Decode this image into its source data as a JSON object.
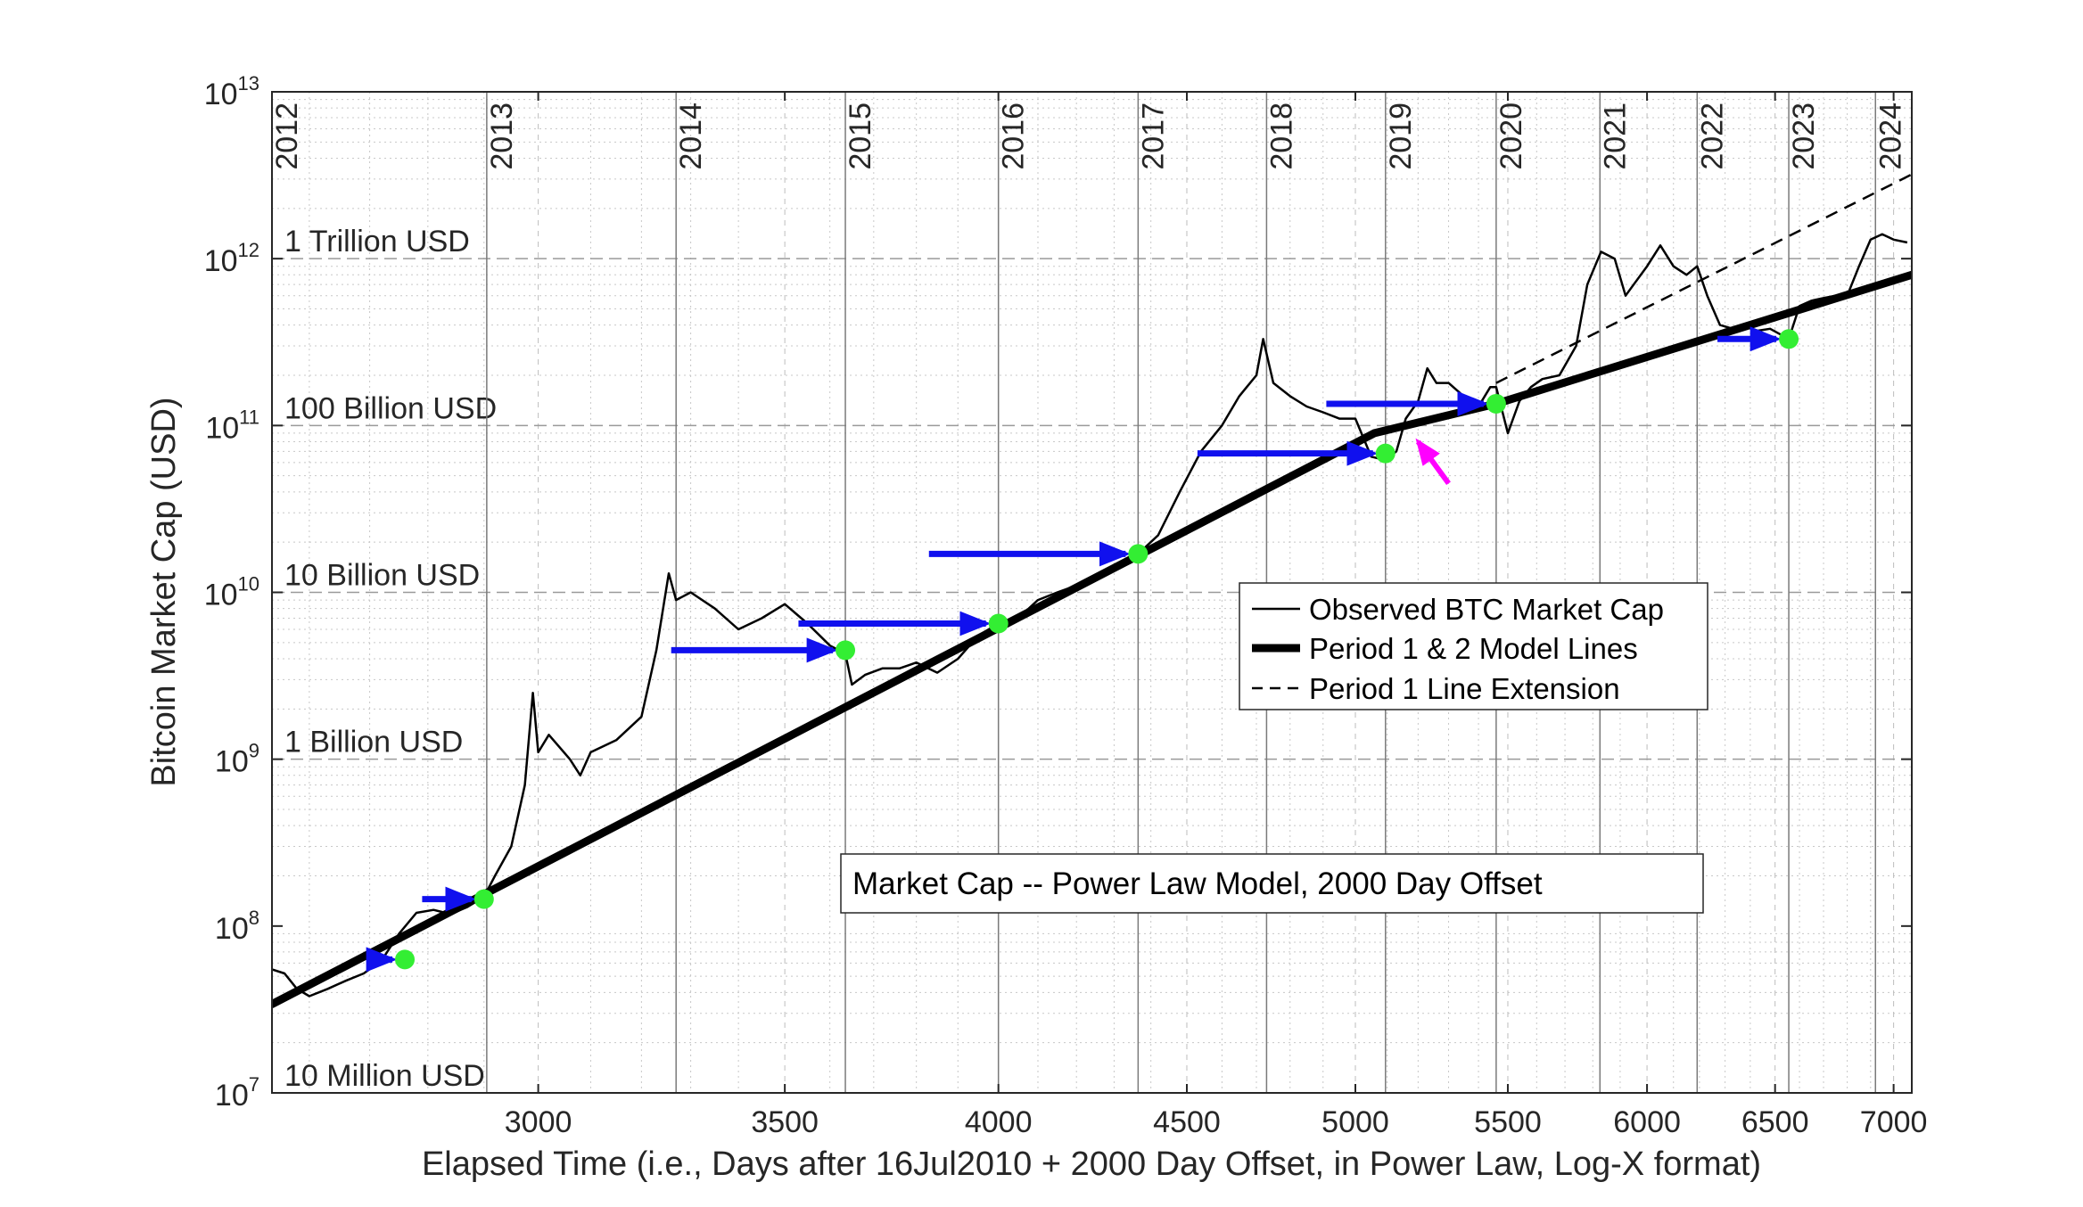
{
  "chart_data": {
    "type": "line",
    "title": "Market Cap -- Power Law Model, 2000 Day Offset",
    "xlabel": "Elapsed Time (i.e., Days after 16Jul2010 + 2000 Day Offset, in Power Law, Log-X format)",
    "ylabel": "Bitcoin Market Cap (USD)",
    "x_scale": "log",
    "y_scale": "log",
    "xlim": [
      2540,
      7080
    ],
    "ylim": [
      10000000,
      10000000000000
    ],
    "x_ticks": [
      3000,
      3500,
      4000,
      4500,
      5000,
      5500,
      6000,
      6500,
      7000
    ],
    "y_ticks": [
      {
        "value": 10000000,
        "base": "10",
        "exp": "7"
      },
      {
        "value": 100000000,
        "base": "10",
        "exp": "8"
      },
      {
        "value": 1000000000,
        "base": "10",
        "exp": "9"
      },
      {
        "value": 10000000000,
        "base": "10",
        "exp": "10"
      },
      {
        "value": 100000000000,
        "base": "10",
        "exp": "11"
      },
      {
        "value": 1000000000000,
        "base": "10",
        "exp": "12"
      },
      {
        "value": 10000000000000,
        "base": "10",
        "exp": "13"
      }
    ],
    "grid": true,
    "legend_position": "center-right",
    "legend": [
      {
        "label": "Observed BTC Market Cap",
        "style": "thin-solid"
      },
      {
        "label": "Period 1 & 2 Model Lines",
        "style": "thick-solid"
      },
      {
        "label": "Period 1 Line Extension",
        "style": "dashed"
      }
    ],
    "reference_lines": [
      {
        "label": "10 Million USD",
        "value": 10000000
      },
      {
        "label": "1 Billion USD",
        "value": 1000000000
      },
      {
        "label": "10 Billion USD",
        "value": 10000000000
      },
      {
        "label": "100 Billion USD",
        "value": 100000000000
      },
      {
        "label": "1 Trillion USD",
        "value": 1000000000000
      }
    ],
    "year_markers": [
      {
        "label": "2012",
        "x": 2540
      },
      {
        "label": "2013",
        "x": 2905
      },
      {
        "label": "2014",
        "x": 3270
      },
      {
        "label": "2015",
        "x": 3635
      },
      {
        "label": "2016",
        "x": 4000
      },
      {
        "label": "2017",
        "x": 4365
      },
      {
        "label": "2018",
        "x": 4730
      },
      {
        "label": "2019",
        "x": 5095
      },
      {
        "label": "2020",
        "x": 5460
      },
      {
        "label": "2021",
        "x": 5826
      },
      {
        "label": "2022",
        "x": 6191
      },
      {
        "label": "2023",
        "x": 6556
      },
      {
        "label": "2024",
        "x": 6921
      }
    ],
    "series": [
      {
        "name": "Observed BTC Market Cap",
        "points": [
          [
            2540,
            55000000
          ],
          [
            2560,
            52000000
          ],
          [
            2580,
            42000000
          ],
          [
            2600,
            38000000
          ],
          [
            2630,
            42000000
          ],
          [
            2660,
            47000000
          ],
          [
            2690,
            52000000
          ],
          [
            2720,
            62000000
          ],
          [
            2750,
            90000000
          ],
          [
            2780,
            120000000
          ],
          [
            2810,
            125000000
          ],
          [
            2840,
            118000000
          ],
          [
            2870,
            130000000
          ],
          [
            2900,
            150000000
          ],
          [
            2920,
            200000000
          ],
          [
            2950,
            300000000
          ],
          [
            2975,
            700000000
          ],
          [
            2990,
            2500000000
          ],
          [
            3000,
            1100000000
          ],
          [
            3020,
            1400000000
          ],
          [
            3060,
            1000000000
          ],
          [
            3080,
            800000000
          ],
          [
            3100,
            1100000000
          ],
          [
            3150,
            1300000000
          ],
          [
            3200,
            1800000000
          ],
          [
            3230,
            4500000000
          ],
          [
            3255,
            13000000000
          ],
          [
            3270,
            9000000000
          ],
          [
            3300,
            10000000000
          ],
          [
            3350,
            8000000000
          ],
          [
            3400,
            6000000000
          ],
          [
            3450,
            7000000000
          ],
          [
            3500,
            8500000000
          ],
          [
            3550,
            6500000000
          ],
          [
            3600,
            4800000000
          ],
          [
            3635,
            4300000000
          ],
          [
            3650,
            2800000000
          ],
          [
            3680,
            3200000000
          ],
          [
            3720,
            3500000000
          ],
          [
            3760,
            3500000000
          ],
          [
            3800,
            3800000000
          ],
          [
            3850,
            3300000000
          ],
          [
            3900,
            4000000000
          ],
          [
            3950,
            5500000000
          ],
          [
            4000,
            6500000000
          ],
          [
            4050,
            7000000000
          ],
          [
            4100,
            9000000000
          ],
          [
            4150,
            10000000000
          ],
          [
            4200,
            11000000000
          ],
          [
            4250,
            12000000000
          ],
          [
            4300,
            14000000000
          ],
          [
            4365,
            17000000000
          ],
          [
            4420,
            22000000000
          ],
          [
            4480,
            40000000000
          ],
          [
            4540,
            70000000000
          ],
          [
            4600,
            100000000000
          ],
          [
            4650,
            150000000000
          ],
          [
            4700,
            200000000000
          ],
          [
            4720,
            330000000000
          ],
          [
            4750,
            180000000000
          ],
          [
            4800,
            150000000000
          ],
          [
            4850,
            130000000000
          ],
          [
            4900,
            120000000000
          ],
          [
            4950,
            110000000000
          ],
          [
            5000,
            110000000000
          ],
          [
            5050,
            65000000000
          ],
          [
            5095,
            62000000000
          ],
          [
            5130,
            70000000000
          ],
          [
            5160,
            110000000000
          ],
          [
            5200,
            140000000000
          ],
          [
            5230,
            220000000000
          ],
          [
            5260,
            180000000000
          ],
          [
            5300,
            180000000000
          ],
          [
            5350,
            150000000000
          ],
          [
            5400,
            130000000000
          ],
          [
            5440,
            170000000000
          ],
          [
            5460,
            170000000000
          ],
          [
            5500,
            90000000000
          ],
          [
            5540,
            140000000000
          ],
          [
            5580,
            170000000000
          ],
          [
            5620,
            190000000000
          ],
          [
            5680,
            200000000000
          ],
          [
            5740,
            300000000000
          ],
          [
            5780,
            700000000000
          ],
          [
            5830,
            1100000000000
          ],
          [
            5880,
            1000000000000
          ],
          [
            5920,
            600000000000
          ],
          [
            5950,
            700000000000
          ],
          [
            6000,
            900000000000
          ],
          [
            6050,
            1200000000000
          ],
          [
            6100,
            900000000000
          ],
          [
            6150,
            800000000000
          ],
          [
            6191,
            900000000000
          ],
          [
            6230,
            600000000000
          ],
          [
            6280,
            400000000000
          ],
          [
            6330,
            380000000000
          ],
          [
            6380,
            390000000000
          ],
          [
            6430,
            370000000000
          ],
          [
            6480,
            380000000000
          ],
          [
            6556,
            330000000000
          ],
          [
            6600,
            520000000000
          ],
          [
            6650,
            560000000000
          ],
          [
            6700,
            580000000000
          ],
          [
            6750,
            600000000000
          ],
          [
            6800,
            600000000000
          ],
          [
            6850,
            900000000000
          ],
          [
            6900,
            1300000000000
          ],
          [
            6950,
            1400000000000
          ],
          [
            7000,
            1300000000000
          ],
          [
            7060,
            1250000000000
          ]
        ]
      },
      {
        "name": "Period 1 & 2 Model Lines",
        "points": [
          [
            2540,
            34000000
          ],
          [
            5060,
            90000000000
          ],
          [
            5460,
            135000000000
          ],
          [
            7080,
            800000000000
          ]
        ]
      },
      {
        "name": "Period 1 Line Extension",
        "points": [
          [
            5460,
            180000000000
          ],
          [
            7080,
            3200000000000
          ]
        ]
      }
    ],
    "markers": [
      {
        "x": 2760,
        "y": 63000000
      },
      {
        "x": 2900,
        "y": 145000000
      },
      {
        "x": 3635,
        "y": 4500000000
      },
      {
        "x": 4000,
        "y": 6500000000
      },
      {
        "x": 4365,
        "y": 17000000000
      },
      {
        "x": 5095,
        "y": 68000000000
      },
      {
        "x": 5460,
        "y": 135000000000
      },
      {
        "x": 6556,
        "y": 330000000000
      }
    ],
    "arrows": [
      {
        "x0": 2705,
        "x1": 2760,
        "y": 63000000
      },
      {
        "x0": 2790,
        "x1": 2900,
        "y": 145000000
      },
      {
        "x0": 3260,
        "x1": 3635,
        "y": 4500000000
      },
      {
        "x0": 3530,
        "x1": 4000,
        "y": 6500000000
      },
      {
        "x0": 3830,
        "x1": 4365,
        "y": 17000000000
      },
      {
        "x0": 4530,
        "x1": 5095,
        "y": 68000000000
      },
      {
        "x0": 4910,
        "x1": 5460,
        "y": 135000000000
      },
      {
        "x0": 6270,
        "x1": 6556,
        "y": 330000000000
      }
    ],
    "annotation_arrow": {
      "from": [
        5300,
        45000000000
      ],
      "to": [
        5200,
        80000000000
      ],
      "color": "#ff00ff"
    },
    "colors": {
      "observed": "#000000",
      "model": "#000000",
      "marker": "#33ee33",
      "arrow": "#1010ee",
      "highlight": "#ff00ff"
    }
  }
}
